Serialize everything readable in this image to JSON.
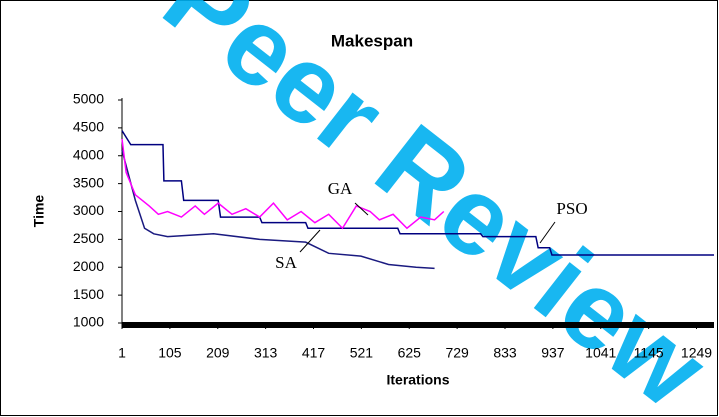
{
  "chart_data": {
    "type": "line",
    "title": "Makespan",
    "xlabel": "Iterations",
    "ylabel": "Time",
    "watermark": "Peer Review",
    "xlim": [
      1,
      1287
    ],
    "xticks": [
      1,
      105,
      209,
      313,
      417,
      521,
      625,
      729,
      833,
      937,
      1041,
      1145,
      1249
    ],
    "ylim": [
      1000,
      5000
    ],
    "yticks": [
      1000,
      1500,
      2000,
      2500,
      3000,
      3500,
      4000,
      4500,
      5000
    ],
    "series": [
      {
        "name": "PSO",
        "color": "#000080",
        "x": [
          1,
          20,
          90,
          92,
          130,
          135,
          210,
          215,
          300,
          305,
          400,
          405,
          600,
          605,
          780,
          785,
          900,
          905,
          930,
          935,
          1287
        ],
        "values": [
          4450,
          4200,
          4200,
          3550,
          3550,
          3200,
          3200,
          2900,
          2900,
          2800,
          2800,
          2700,
          2700,
          2600,
          2600,
          2550,
          2550,
          2350,
          2350,
          2220,
          2220
        ]
      },
      {
        "name": "SA",
        "color": "#1a1a80",
        "x": [
          1,
          30,
          50,
          70,
          100,
          200,
          300,
          400,
          450,
          520,
          580,
          640,
          680
        ],
        "values": [
          4100,
          3200,
          2700,
          2600,
          2550,
          2600,
          2500,
          2450,
          2250,
          2200,
          2050,
          2000,
          1980
        ]
      },
      {
        "name": "GA",
        "color": "#ff00ff",
        "x": [
          1,
          10,
          30,
          60,
          80,
          100,
          130,
          160,
          180,
          210,
          240,
          270,
          300,
          330,
          360,
          390,
          420,
          450,
          480,
          510,
          540,
          560,
          590,
          620,
          650,
          680,
          700
        ],
        "values": [
          4300,
          3700,
          3300,
          3100,
          2950,
          3000,
          2900,
          3100,
          2950,
          3150,
          2950,
          3050,
          2900,
          3150,
          2850,
          3000,
          2800,
          2950,
          2700,
          3100,
          3000,
          2850,
          2950,
          2700,
          2900,
          2850,
          3000
        ]
      }
    ]
  }
}
